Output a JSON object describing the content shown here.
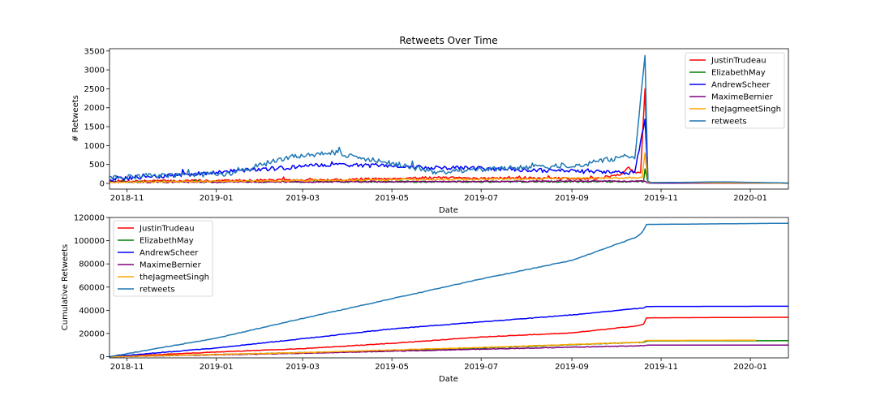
{
  "chart_data": [
    {
      "type": "line",
      "title": "Retweets Over Time",
      "xlabel": "Date",
      "ylabel": "# Retweets",
      "x_ticks": [
        "2018-11",
        "2019-01",
        "2019-03",
        "2019-05",
        "2019-07",
        "2019-09",
        "2019-11",
        "2020-01"
      ],
      "y_ticks": [
        "0",
        "500",
        "1000",
        "1500",
        "2000",
        "2500",
        "3000",
        "3500"
      ],
      "ylim": [
        -150,
        3560
      ],
      "xlim": [
        "2018-10-20",
        "2020-01-27"
      ],
      "legend_position": "upper right",
      "grid": false,
      "series": [
        {
          "name": "JustinTrudeau",
          "color": "#ff0000",
          "baseline": 40,
          "noise": 30,
          "points": [
            [
              "2018-10-20",
              60
            ],
            [
              "2019-03-22",
              90
            ],
            [
              "2019-05-20",
              150
            ],
            [
              "2019-06-28",
              140
            ],
            [
              "2019-09-20",
              130
            ],
            [
              "2019-10-05",
              250
            ],
            [
              "2019-10-10",
              430
            ],
            [
              "2019-10-14",
              300
            ],
            [
              "2019-10-18",
              280
            ],
            [
              "2019-10-21",
              2500
            ],
            [
              "2019-10-23",
              60
            ],
            [
              "2019-10-25",
              10
            ],
            [
              "2020-01-27",
              5
            ]
          ]
        },
        {
          "name": "ElizabethMay",
          "color": "#008000",
          "baseline": 35,
          "noise": 20,
          "points": [
            [
              "2018-10-20",
              40
            ],
            [
              "2019-10-20",
              50
            ],
            [
              "2019-10-21",
              380
            ],
            [
              "2019-10-23",
              20
            ],
            [
              "2020-01-27",
              5
            ]
          ]
        },
        {
          "name": "AndrewScheer",
          "color": "#0000ff",
          "baseline": 110,
          "noise": 55,
          "points": [
            [
              "2018-10-20",
              100
            ],
            [
              "2019-03-22",
              500
            ],
            [
              "2019-10-08",
              280
            ],
            [
              "2019-10-14",
              300
            ],
            [
              "2019-10-21",
              1700
            ],
            [
              "2019-10-23",
              40
            ],
            [
              "2019-10-25",
              10
            ],
            [
              "2020-01-27",
              5
            ]
          ]
        },
        {
          "name": "MaximeBernier",
          "color": "#800080",
          "baseline": 25,
          "noise": 15,
          "points": [
            [
              "2018-10-20",
              30
            ],
            [
              "2019-10-21",
              60
            ],
            [
              "2019-10-23",
              10
            ],
            [
              "2020-01-27",
              3
            ]
          ]
        },
        {
          "name": "theJagmeetSingh",
          "color": "#ffa500",
          "baseline": 30,
          "noise": 20,
          "points": [
            [
              "2018-10-20",
              30
            ],
            [
              "2019-10-19",
              150
            ],
            [
              "2019-10-21",
              800
            ],
            [
              "2019-10-23",
              30
            ],
            [
              "2020-01-27",
              5
            ]
          ]
        },
        {
          "name": "retweets",
          "color": "#1f77b4",
          "baseline": 260,
          "noise": 70,
          "points": [
            [
              "2018-10-20",
              180
            ],
            [
              "2019-01-10",
              260
            ],
            [
              "2019-02-20",
              700
            ],
            [
              "2019-03-22",
              820
            ],
            [
              "2019-06-01",
              300
            ],
            [
              "2019-09-10",
              500
            ],
            [
              "2019-10-08",
              730
            ],
            [
              "2019-10-14",
              650
            ],
            [
              "2019-10-21",
              3380
            ],
            [
              "2019-10-23",
              60
            ],
            [
              "2019-10-25",
              20
            ],
            [
              "2019-12-14",
              40
            ],
            [
              "2020-01-27",
              10
            ]
          ]
        }
      ]
    },
    {
      "type": "line",
      "title": "",
      "xlabel": "Date",
      "ylabel": "Cumulative Retweets",
      "x_ticks": [
        "2018-11",
        "2019-01",
        "2019-03",
        "2019-05",
        "2019-07",
        "2019-09",
        "2019-11",
        "2020-01"
      ],
      "y_ticks": [
        "0",
        "20000",
        "40000",
        "60000",
        "80000",
        "100000",
        "120000"
      ],
      "ylim": [
        -1000,
        120000
      ],
      "xlim": [
        "2018-10-20",
        "2020-01-27"
      ],
      "legend_position": "upper left",
      "grid": false,
      "series": [
        {
          "name": "JustinTrudeau",
          "color": "#ff0000",
          "points": [
            [
              "2018-10-20",
              0
            ],
            [
              "2019-01-01",
              4000
            ],
            [
              "2019-03-01",
              7000
            ],
            [
              "2019-05-01",
              11500
            ],
            [
              "2019-07-01",
              17000
            ],
            [
              "2019-09-01",
              20500
            ],
            [
              "2019-10-15",
              26500
            ],
            [
              "2019-10-20",
              28000
            ],
            [
              "2019-10-22",
              33500
            ],
            [
              "2020-01-27",
              34000
            ]
          ]
        },
        {
          "name": "ElizabethMay",
          "color": "#008000",
          "points": [
            [
              "2018-10-20",
              0
            ],
            [
              "2019-03-01",
              3500
            ],
            [
              "2019-07-01",
              7500
            ],
            [
              "2019-10-20",
              12500
            ],
            [
              "2019-10-23",
              13700
            ],
            [
              "2020-01-27",
              13800
            ]
          ]
        },
        {
          "name": "AndrewScheer",
          "color": "#0000ff",
          "points": [
            [
              "2018-10-20",
              0
            ],
            [
              "2019-01-01",
              7500
            ],
            [
              "2019-03-01",
              15500
            ],
            [
              "2019-05-01",
              24000
            ],
            [
              "2019-07-01",
              30000
            ],
            [
              "2019-09-01",
              36000
            ],
            [
              "2019-10-15",
              41500
            ],
            [
              "2019-10-20",
              42000
            ],
            [
              "2019-10-22",
              43300
            ],
            [
              "2020-01-27",
              43500
            ]
          ]
        },
        {
          "name": "MaximeBernier",
          "color": "#800080",
          "points": [
            [
              "2018-10-20",
              0
            ],
            [
              "2019-03-01",
              3000
            ],
            [
              "2019-07-01",
              6500
            ],
            [
              "2019-10-20",
              9500
            ],
            [
              "2019-10-23",
              10000
            ],
            [
              "2020-01-27",
              10000
            ]
          ]
        },
        {
          "name": "theJagmeetSingh",
          "color": "#ffa500",
          "points": [
            [
              "2018-10-20",
              0
            ],
            [
              "2019-03-01",
              3500
            ],
            [
              "2019-07-01",
              8000
            ],
            [
              "2019-10-19",
              12500
            ],
            [
              "2019-10-22",
              14000
            ],
            [
              "2020-01-05",
              14200
            ]
          ]
        },
        {
          "name": "retweets",
          "color": "#1f77b4",
          "points": [
            [
              "2018-10-20",
              0
            ],
            [
              "2019-01-01",
              16000
            ],
            [
              "2019-03-01",
              33000
            ],
            [
              "2019-05-01",
              50000
            ],
            [
              "2019-07-01",
              67000
            ],
            [
              "2019-09-01",
              83000
            ],
            [
              "2019-10-15",
              103000
            ],
            [
              "2019-10-19",
              107000
            ],
            [
              "2019-10-22",
              114000
            ],
            [
              "2020-01-27",
              115000
            ]
          ]
        }
      ]
    }
  ]
}
